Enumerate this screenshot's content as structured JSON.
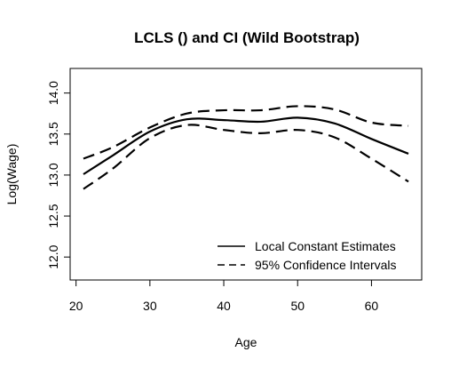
{
  "chart_data": {
    "type": "line",
    "title": "LCLS () and CI (Wild Bootstrap)",
    "xlabel": "Age",
    "ylabel": "Log(Wage)",
    "xlim": [
      19.2,
      66.8
    ],
    "ylim": [
      11.72,
      14.3
    ],
    "x_ticks": [
      20,
      30,
      40,
      50,
      60
    ],
    "y_ticks": [
      12.0,
      12.5,
      13.0,
      13.5,
      14.0
    ],
    "x_tick_labels": [
      "20",
      "30",
      "40",
      "50",
      "60"
    ],
    "y_tick_labels": [
      "12.0",
      "12.5",
      "13.0",
      "13.5",
      "14.0"
    ],
    "grid": false,
    "legend_position": "bottom-right",
    "x": [
      21,
      25,
      30,
      35,
      40,
      45,
      50,
      55,
      60,
      65
    ],
    "series": [
      {
        "name": "Local Constant Estimates",
        "line_style": "solid",
        "values": [
          13.01,
          13.24,
          13.53,
          13.68,
          13.67,
          13.65,
          13.7,
          13.63,
          13.44,
          13.26
        ]
      },
      {
        "name": "95% Confidence Intervals",
        "line_style": "dashed",
        "values": [
          13.2,
          13.34,
          13.58,
          13.75,
          13.79,
          13.79,
          13.84,
          13.8,
          13.64,
          13.6
        ]
      },
      {
        "name": "",
        "line_style": "dashed",
        "values": [
          12.83,
          13.08,
          13.45,
          13.61,
          13.55,
          13.51,
          13.55,
          13.46,
          13.2,
          12.92
        ]
      }
    ],
    "legend": [
      {
        "label": "Local Constant Estimates",
        "line_style": "solid"
      },
      {
        "label": "95% Confidence Intervals",
        "line_style": "dashed"
      }
    ]
  }
}
